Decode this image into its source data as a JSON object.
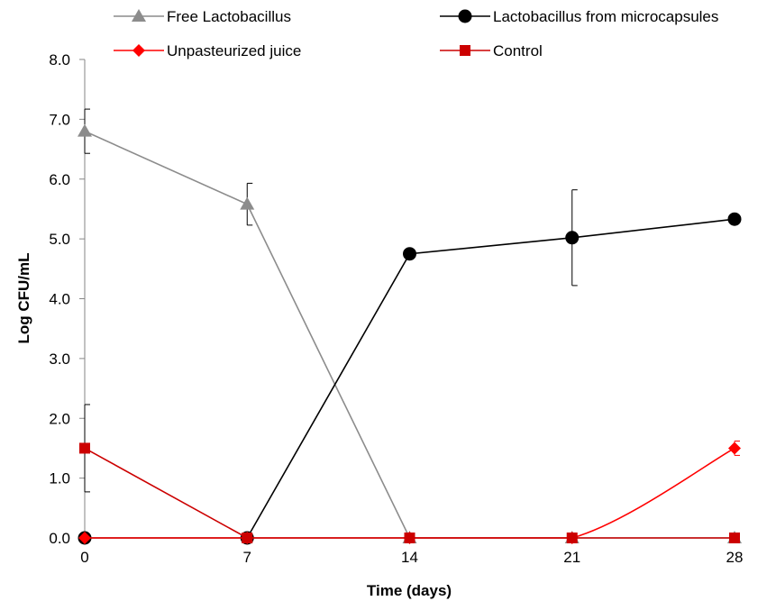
{
  "chart_data": {
    "type": "line",
    "xlabel": "Time (days)",
    "ylabel": "Log CFU/mL",
    "x": [
      0,
      7,
      14,
      21,
      28
    ],
    "x_tick_labels": [
      "0",
      "7",
      "14",
      "21",
      "28"
    ],
    "ylim": [
      0,
      8
    ],
    "y_tick_labels": [
      "0.0",
      "1.0",
      "2.0",
      "3.0",
      "4.0",
      "5.0",
      "6.0",
      "7.0",
      "8.0"
    ],
    "grid": false,
    "legend_position": "top",
    "series": [
      {
        "name": "Free Lactobacillus",
        "values": [
          6.8,
          5.58,
          0.0,
          0.0,
          0.0
        ],
        "error": [
          0.37,
          0.35,
          0,
          0,
          0
        ],
        "color": "#8c8c8c",
        "marker": "triangle",
        "smooth": false
      },
      {
        "name": "Lactobacillus from microcapsules",
        "values": [
          0.0,
          0.0,
          4.75,
          5.02,
          5.33
        ],
        "error": [
          0,
          0,
          0,
          0.8,
          0
        ],
        "color": "#000000",
        "marker": "circle",
        "smooth": false
      },
      {
        "name": "Unpasteurized juice",
        "values": [
          0.0,
          0.0,
          0.0,
          0.0,
          1.5
        ],
        "error": [
          0,
          0,
          0,
          0,
          0.12
        ],
        "color": "#ff0000",
        "marker": "diamond",
        "smooth": true
      },
      {
        "name": "Control",
        "values": [
          1.5,
          0.0,
          0.0,
          0.0,
          0.0
        ],
        "error": [
          0.73,
          0,
          0,
          0,
          0
        ],
        "color": "#cc0000",
        "marker": "square",
        "smooth": false
      }
    ]
  }
}
